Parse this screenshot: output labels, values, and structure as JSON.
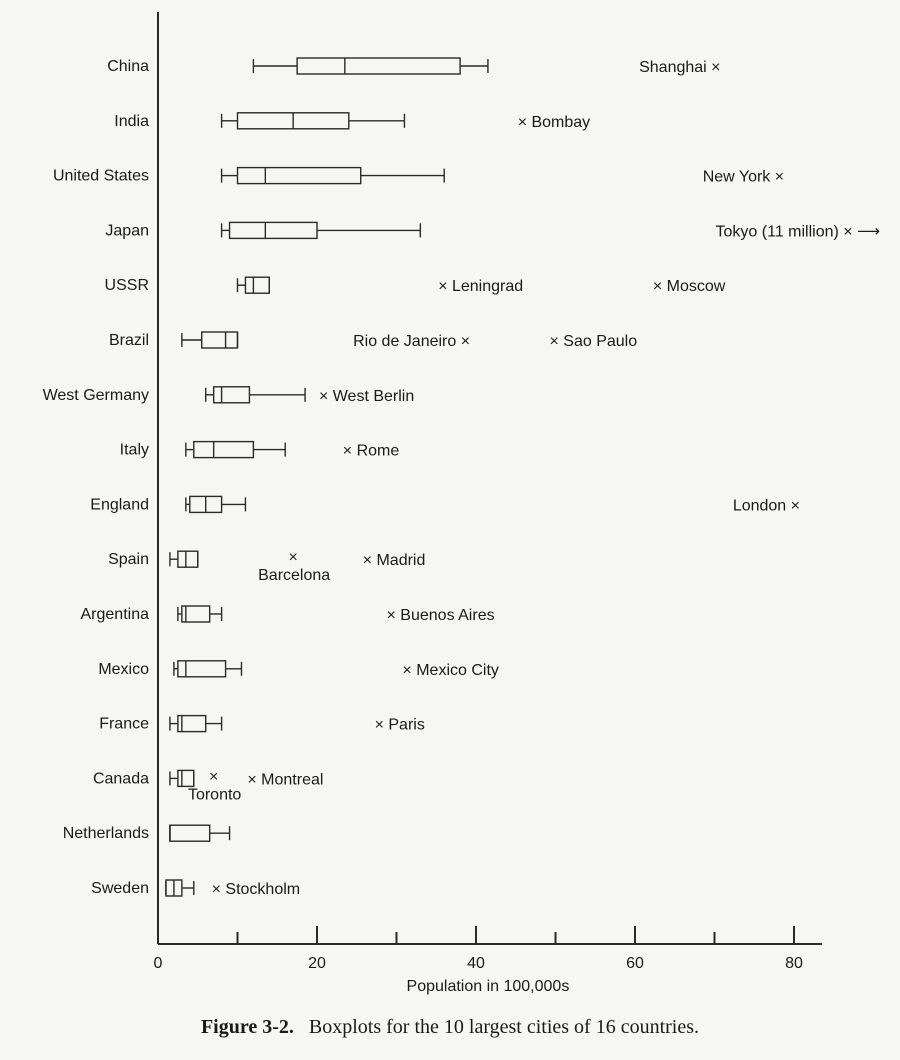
{
  "chart_data": {
    "type": "boxplot",
    "orientation": "horizontal",
    "xlabel": "Population in 100,000s",
    "xlim": [
      0,
      85
    ],
    "xticks": [
      0,
      10,
      20,
      30,
      40,
      50,
      60,
      70,
      80
    ],
    "xtick_labels": [
      {
        "value": 0,
        "label": "0"
      },
      {
        "value": 20,
        "label": "20"
      },
      {
        "value": 40,
        "label": "40"
      },
      {
        "value": 60,
        "label": "60"
      },
      {
        "value": 80,
        "label": "80"
      }
    ],
    "grid": false,
    "series": [
      {
        "category": "China",
        "whisker_low": 12,
        "q1": 17.5,
        "median": 23.5,
        "q3": 38,
        "whisker_high": 41.5,
        "outliers": [
          {
            "name": "Shanghai ×",
            "value": 70,
            "label_side": "left"
          }
        ]
      },
      {
        "category": "India",
        "whisker_low": 8,
        "q1": 10,
        "median": 17,
        "q3": 24,
        "whisker_high": 31,
        "outliers": [
          {
            "name": "× Bombay",
            "value": 46,
            "label_side": "right"
          }
        ]
      },
      {
        "category": "United States",
        "whisker_low": 8,
        "q1": 10,
        "median": 13.5,
        "q3": 25.5,
        "whisker_high": 36,
        "outliers": [
          {
            "name": "New York ×",
            "value": 78,
            "label_side": "left"
          }
        ]
      },
      {
        "category": "Japan",
        "whisker_low": 8,
        "q1": 9,
        "median": 13.5,
        "q3": 20,
        "whisker_high": 33,
        "outliers": [
          {
            "name": "Tokyo (11 million) × ⟶",
            "value": 110,
            "label_side": "offscale"
          }
        ]
      },
      {
        "category": "USSR",
        "whisker_low": 10,
        "q1": 11,
        "median": 12,
        "q3": 14,
        "whisker_high": 14,
        "outliers": [
          {
            "name": "× Leningrad",
            "value": 36,
            "label_side": "right"
          },
          {
            "name": "× Moscow",
            "value": 63,
            "label_side": "right"
          }
        ]
      },
      {
        "category": "Brazil",
        "whisker_low": 3,
        "q1": 5.5,
        "median": 8.5,
        "q3": 10,
        "whisker_high": 10,
        "outliers": [
          {
            "name": "Rio de Janeiro ×",
            "value": 38.5,
            "label_side": "left"
          },
          {
            "name": "× Sao Paulo",
            "value": 50,
            "label_side": "right"
          }
        ]
      },
      {
        "category": "West Germany",
        "whisker_low": 6,
        "q1": 7,
        "median": 8,
        "q3": 11.5,
        "whisker_high": 18.5,
        "outliers": [
          {
            "name": "× West Berlin",
            "value": 21,
            "label_side": "right"
          }
        ]
      },
      {
        "category": "Italy",
        "whisker_low": 3.5,
        "q1": 4.5,
        "median": 7,
        "q3": 12,
        "whisker_high": 16,
        "outliers": [
          {
            "name": "× Rome",
            "value": 24,
            "label_side": "right"
          }
        ]
      },
      {
        "category": "England",
        "whisker_low": 3.5,
        "q1": 4,
        "median": 6,
        "q3": 8,
        "whisker_high": 11,
        "outliers": [
          {
            "name": "London ×",
            "value": 80,
            "label_side": "left"
          }
        ]
      },
      {
        "category": "Spain",
        "whisker_low": 1.5,
        "q1": 2.5,
        "median": 3.5,
        "q3": 5,
        "whisker_high": 5,
        "outliers": [
          {
            "name": "Barcelona",
            "value": 17,
            "label_side": "below"
          },
          {
            "name": "× Madrid",
            "value": 26.5,
            "label_side": "right"
          }
        ]
      },
      {
        "category": "Argentina",
        "whisker_low": 2.5,
        "q1": 3,
        "median": 3.5,
        "q3": 6.5,
        "whisker_high": 8,
        "outliers": [
          {
            "name": "× Buenos Aires",
            "value": 29.5,
            "label_side": "right"
          }
        ]
      },
      {
        "category": "Mexico",
        "whisker_low": 2,
        "q1": 2.5,
        "median": 3.5,
        "q3": 8.5,
        "whisker_high": 10.5,
        "outliers": [
          {
            "name": "× Mexico City",
            "value": 31.5,
            "label_side": "right"
          }
        ]
      },
      {
        "category": "France",
        "whisker_low": 1.5,
        "q1": 2.5,
        "median": 3,
        "q3": 6,
        "whisker_high": 8,
        "outliers": [
          {
            "name": "× Paris",
            "value": 28,
            "label_side": "right"
          }
        ]
      },
      {
        "category": "Canada",
        "whisker_low": 1.5,
        "q1": 2.5,
        "median": 3,
        "q3": 4.5,
        "whisker_high": 4.5,
        "outliers": [
          {
            "name": "Toronto",
            "value": 7,
            "label_side": "below"
          },
          {
            "name": "× Montreal",
            "value": 12,
            "label_side": "right"
          }
        ]
      },
      {
        "category": "Netherlands",
        "whisker_low": 1.5,
        "q1": 1.5,
        "median": 1.5,
        "q3": 6.5,
        "whisker_high": 9,
        "outliers": []
      },
      {
        "category": "Sweden",
        "whisker_low": 1,
        "q1": 1,
        "median": 2,
        "q3": 3,
        "whisker_high": 4.5,
        "outliers": [
          {
            "name": "× Stockholm",
            "value": 7.5,
            "label_side": "right"
          }
        ]
      }
    ]
  },
  "caption": {
    "label": "Figure 3-2.",
    "text": "Boxplots for the 10 largest cities of 16 countries."
  }
}
